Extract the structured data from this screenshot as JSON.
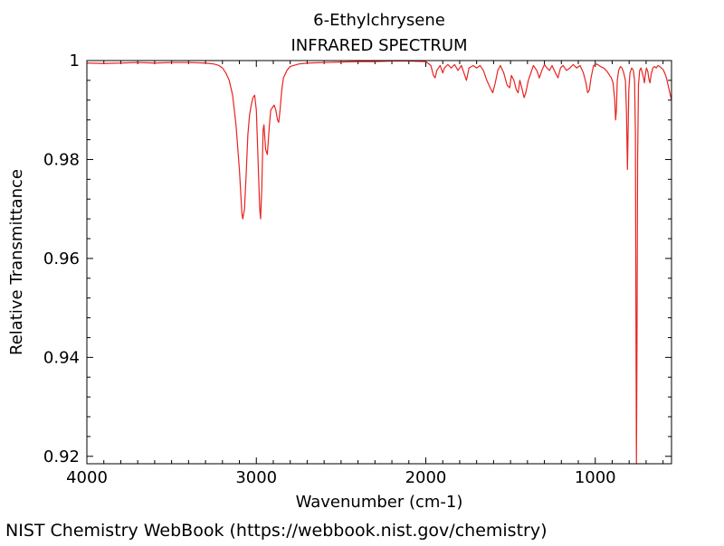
{
  "chart_data": {
    "type": "line",
    "title": "6-Ethylchrysene",
    "subtitle": "INFRARED SPECTRUM",
    "xlabel": "Wavenumber (cm-1)",
    "ylabel": "Relative Transmittance",
    "xlim": [
      4000,
      550
    ],
    "ylim": [
      0.9185,
      1.0
    ],
    "x_reversed": true,
    "x_ticks": [
      4000,
      3000,
      2000,
      1000
    ],
    "x_tick_labels": [
      "4000",
      "3000",
      "2000",
      "1000"
    ],
    "y_ticks": [
      0.92,
      0.94,
      0.96,
      0.98,
      1.0
    ],
    "y_tick_labels": [
      "0.92",
      "0.94",
      "0.96",
      "0.98",
      "1"
    ],
    "grid": false,
    "series": [
      {
        "color": "#e8231f",
        "points": [
          [
            4000,
            0.9995
          ],
          [
            3900,
            0.9994
          ],
          [
            3800,
            0.9995
          ],
          [
            3700,
            0.9996
          ],
          [
            3600,
            0.9995
          ],
          [
            3500,
            0.9996
          ],
          [
            3400,
            0.9996
          ],
          [
            3300,
            0.9995
          ],
          [
            3250,
            0.9993
          ],
          [
            3220,
            0.999
          ],
          [
            3200,
            0.9985
          ],
          [
            3180,
            0.9975
          ],
          [
            3160,
            0.996
          ],
          [
            3140,
            0.993
          ],
          [
            3120,
            0.987
          ],
          [
            3100,
            0.978
          ],
          [
            3085,
            0.969
          ],
          [
            3080,
            0.968
          ],
          [
            3070,
            0.97
          ],
          [
            3060,
            0.977
          ],
          [
            3050,
            0.985
          ],
          [
            3040,
            0.989
          ],
          [
            3030,
            0.991
          ],
          [
            3020,
            0.9925
          ],
          [
            3010,
            0.993
          ],
          [
            3000,
            0.99
          ],
          [
            2990,
            0.98
          ],
          [
            2980,
            0.97
          ],
          [
            2975,
            0.968
          ],
          [
            2968,
            0.974
          ],
          [
            2960,
            0.986
          ],
          [
            2955,
            0.987
          ],
          [
            2945,
            0.982
          ],
          [
            2935,
            0.981
          ],
          [
            2925,
            0.986
          ],
          [
            2915,
            0.99
          ],
          [
            2905,
            0.9905
          ],
          [
            2895,
            0.991
          ],
          [
            2885,
            0.99
          ],
          [
            2875,
            0.988
          ],
          [
            2868,
            0.9875
          ],
          [
            2860,
            0.99
          ],
          [
            2850,
            0.994
          ],
          [
            2840,
            0.9965
          ],
          [
            2820,
            0.998
          ],
          [
            2800,
            0.9988
          ],
          [
            2750,
            0.9993
          ],
          [
            2700,
            0.9995
          ],
          [
            2600,
            0.9996
          ],
          [
            2500,
            0.9997
          ],
          [
            2400,
            0.9998
          ],
          [
            2300,
            0.9998
          ],
          [
            2200,
            0.9999
          ],
          [
            2100,
            0.9999
          ],
          [
            2000,
            0.9998
          ],
          [
            1970,
            0.999
          ],
          [
            1955,
            0.997
          ],
          [
            1945,
            0.9965
          ],
          [
            1935,
            0.998
          ],
          [
            1915,
            0.999
          ],
          [
            1900,
            0.9975
          ],
          [
            1890,
            0.9985
          ],
          [
            1870,
            0.9992
          ],
          [
            1850,
            0.9985
          ],
          [
            1830,
            0.9992
          ],
          [
            1810,
            0.998
          ],
          [
            1790,
            0.999
          ],
          [
            1775,
            0.9975
          ],
          [
            1760,
            0.996
          ],
          [
            1745,
            0.9985
          ],
          [
            1720,
            0.999
          ],
          [
            1700,
            0.9985
          ],
          [
            1680,
            0.999
          ],
          [
            1660,
            0.998
          ],
          [
            1640,
            0.996
          ],
          [
            1620,
            0.9945
          ],
          [
            1605,
            0.9935
          ],
          [
            1590,
            0.9955
          ],
          [
            1575,
            0.998
          ],
          [
            1560,
            0.999
          ],
          [
            1540,
            0.9975
          ],
          [
            1520,
            0.995
          ],
          [
            1505,
            0.9945
          ],
          [
            1495,
            0.997
          ],
          [
            1480,
            0.996
          ],
          [
            1465,
            0.994
          ],
          [
            1455,
            0.9935
          ],
          [
            1445,
            0.996
          ],
          [
            1430,
            0.994
          ],
          [
            1420,
            0.9925
          ],
          [
            1410,
            0.9935
          ],
          [
            1395,
            0.996
          ],
          [
            1380,
            0.9975
          ],
          [
            1365,
            0.999
          ],
          [
            1345,
            0.998
          ],
          [
            1330,
            0.9965
          ],
          [
            1315,
            0.998
          ],
          [
            1300,
            0.9992
          ],
          [
            1285,
            0.9985
          ],
          [
            1270,
            0.998
          ],
          [
            1255,
            0.999
          ],
          [
            1235,
            0.9975
          ],
          [
            1220,
            0.9965
          ],
          [
            1205,
            0.9985
          ],
          [
            1190,
            0.999
          ],
          [
            1170,
            0.998
          ],
          [
            1150,
            0.9985
          ],
          [
            1130,
            0.9992
          ],
          [
            1110,
            0.9985
          ],
          [
            1090,
            0.999
          ],
          [
            1070,
            0.9975
          ],
          [
            1055,
            0.9955
          ],
          [
            1045,
            0.9935
          ],
          [
            1035,
            0.994
          ],
          [
            1025,
            0.9965
          ],
          [
            1010,
            0.999
          ],
          [
            990,
            0.9993
          ],
          [
            970,
            0.9988
          ],
          [
            950,
            0.9985
          ],
          [
            930,
            0.9978
          ],
          [
            915,
            0.997
          ],
          [
            905,
            0.9965
          ],
          [
            895,
            0.9955
          ],
          [
            885,
            0.992
          ],
          [
            880,
            0.988
          ],
          [
            875,
            0.99
          ],
          [
            870,
            0.996
          ],
          [
            862,
            0.998
          ],
          [
            852,
            0.9988
          ],
          [
            842,
            0.9985
          ],
          [
            832,
            0.9975
          ],
          [
            822,
            0.996
          ],
          [
            816,
            0.99
          ],
          [
            812,
            0.982
          ],
          [
            810,
            0.978
          ],
          [
            807,
            0.984
          ],
          [
            802,
            0.994
          ],
          [
            795,
            0.9975
          ],
          [
            785,
            0.9985
          ],
          [
            775,
            0.998
          ],
          [
            768,
            0.996
          ],
          [
            763,
            0.985
          ],
          [
            760,
            0.95
          ],
          [
            757,
            0.9185
          ],
          [
            754,
            0.94
          ],
          [
            750,
            0.98
          ],
          [
            745,
            0.995
          ],
          [
            738,
            0.998
          ],
          [
            730,
            0.9985
          ],
          [
            722,
            0.9975
          ],
          [
            715,
            0.9965
          ],
          [
            710,
            0.9955
          ],
          [
            705,
            0.997
          ],
          [
            698,
            0.9985
          ],
          [
            690,
            0.9978
          ],
          [
            683,
            0.9962
          ],
          [
            677,
            0.9955
          ],
          [
            670,
            0.9972
          ],
          [
            660,
            0.9985
          ],
          [
            650,
            0.9988
          ],
          [
            640,
            0.9985
          ],
          [
            630,
            0.999
          ],
          [
            620,
            0.9988
          ],
          [
            610,
            0.9985
          ],
          [
            600,
            0.9982
          ],
          [
            590,
            0.9975
          ],
          [
            580,
            0.9965
          ],
          [
            570,
            0.995
          ],
          [
            560,
            0.9935
          ],
          [
            550,
            0.992
          ]
        ]
      }
    ]
  },
  "footer": {
    "credit": "NIST Chemistry WebBook (https://webbook.nist.gov/chemistry)"
  }
}
